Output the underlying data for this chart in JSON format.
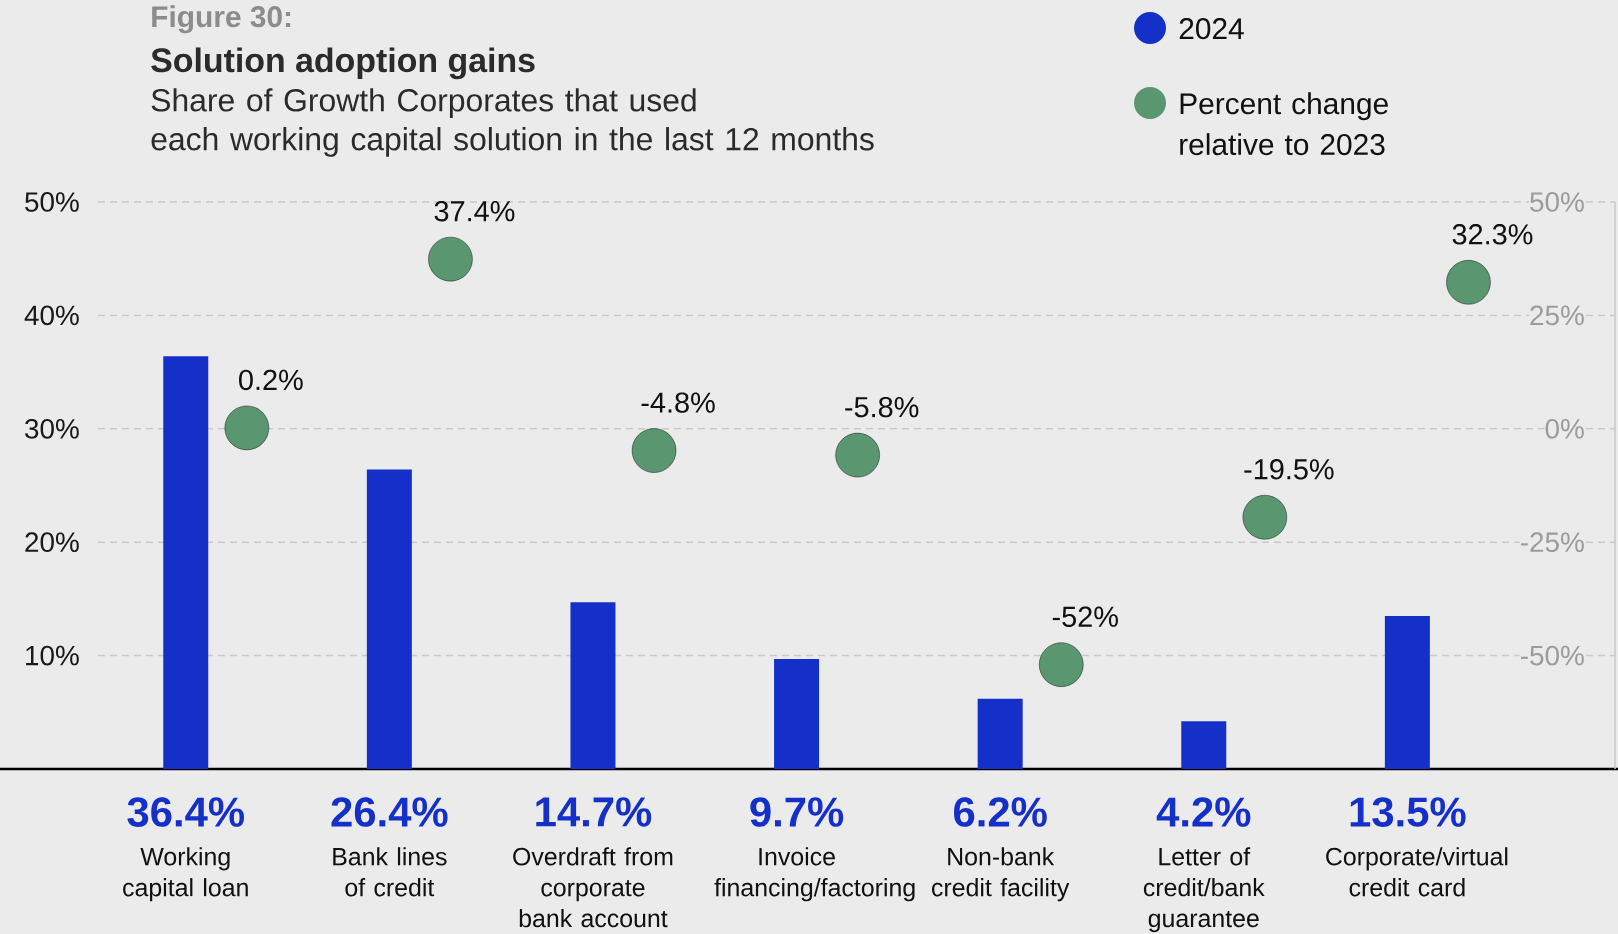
{
  "chart_data": {
    "type": "bar",
    "title": "Solution adoption gains",
    "subtitle": "Share of Growth Corporates that used each working capital solution in the last 12 months",
    "annotations": [
      "Figure 30:"
    ],
    "categories": [
      "Working capital loan",
      "Bank lines of credit",
      "Overdraft from corporate bank account",
      "Invoice financing/factoring",
      "Non-bank credit facility",
      "Letter of credit/bank guarantee",
      "Corporate/virtual credit card"
    ],
    "series": [
      {
        "name": "2024",
        "color": "#1530c8",
        "values": [
          36.4,
          26.4,
          14.7,
          9.7,
          6.2,
          4.2,
          13.5
        ],
        "value_labels": [
          "36.4%",
          "26.4%",
          "14.7%",
          "9.7%",
          "6.2%",
          "4.2%",
          "13.5%"
        ]
      },
      {
        "name": "Percent change relative to 2023",
        "type": "scatter",
        "axis": "y2",
        "color": "#5a9670",
        "values": [
          0.2,
          37.4,
          -4.8,
          -5.8,
          -52,
          -19.5,
          32.3
        ],
        "value_labels": [
          "0.2%",
          "37.4%",
          "-4.8%",
          "-5.8%",
          "-52%",
          "-19.5%",
          "32.3%"
        ]
      }
    ],
    "ylim": [
      0,
      50
    ],
    "yticks": [
      {
        "value": 10,
        "label": "10%"
      },
      {
        "value": 20,
        "label": "20%"
      },
      {
        "value": 30,
        "label": "30%"
      },
      {
        "value": 40,
        "label": "40%"
      },
      {
        "value": 50,
        "label": "50%"
      }
    ],
    "y2lim": [
      -75,
      50
    ],
    "y2ticks": [
      {
        "value": -50,
        "label": "-50%"
      },
      {
        "value": -25,
        "label": "-25%"
      },
      {
        "value": 0,
        "label": "0%"
      },
      {
        "value": 25,
        "label": "25%"
      },
      {
        "value": 50,
        "label": "50%"
      }
    ],
    "grid": "y",
    "legend": "top right",
    "marker": "circle"
  }
}
